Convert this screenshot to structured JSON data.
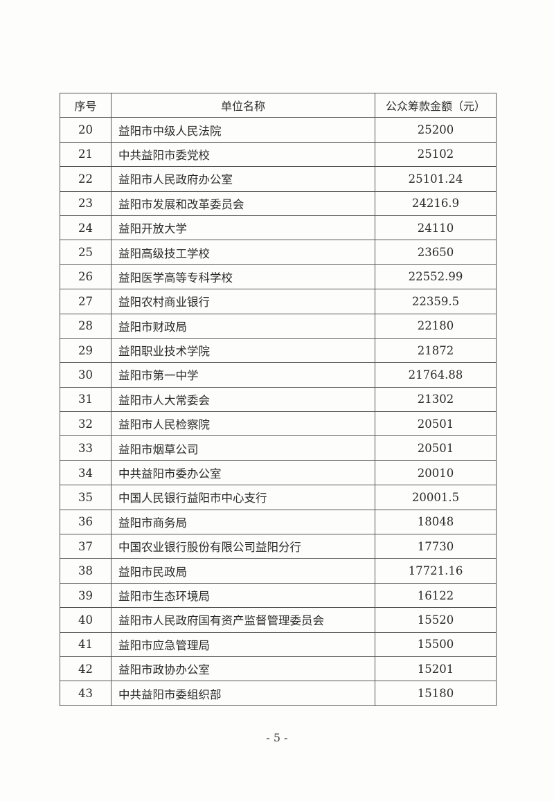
{
  "table": {
    "headers": [
      "序号",
      "单位名称",
      "公众筹款金额（元）"
    ],
    "rows": [
      [
        "20",
        "益阳市中级人民法院",
        "25200"
      ],
      [
        "21",
        "中共益阳市委党校",
        "25102"
      ],
      [
        "22",
        "益阳市人民政府办公室",
        "25101.24"
      ],
      [
        "23",
        "益阳市发展和改革委员会",
        "24216.9"
      ],
      [
        "24",
        "益阳开放大学",
        "24110"
      ],
      [
        "25",
        "益阳高级技工学校",
        "23650"
      ],
      [
        "26",
        "益阳医学高等专科学校",
        "22552.99"
      ],
      [
        "27",
        "益阳农村商业银行",
        "22359.5"
      ],
      [
        "28",
        "益阳市财政局",
        "22180"
      ],
      [
        "29",
        "益阳职业技术学院",
        "21872"
      ],
      [
        "30",
        "益阳市第一中学",
        "21764.88"
      ],
      [
        "31",
        "益阳市人大常委会",
        "21302"
      ],
      [
        "32",
        "益阳市人民检察院",
        "20501"
      ],
      [
        "33",
        "益阳市烟草公司",
        "20501"
      ],
      [
        "34",
        "中共益阳市委办公室",
        "20010"
      ],
      [
        "35",
        "中国人民银行益阳市中心支行",
        "20001.5"
      ],
      [
        "36",
        "益阳市商务局",
        "18048"
      ],
      [
        "37",
        "中国农业银行股份有限公司益阳分行",
        "17730"
      ],
      [
        "38",
        "益阳市民政局",
        "17721.16"
      ],
      [
        "39",
        "益阳市生态环境局",
        "16122"
      ],
      [
        "40",
        "益阳市人民政府国有资产监督管理委员会",
        "15520"
      ],
      [
        "41",
        "益阳市应急管理局",
        "15500"
      ],
      [
        "42",
        "益阳市政协办公室",
        "15201"
      ],
      [
        "43",
        "中共益阳市委组织部",
        "15180"
      ]
    ]
  },
  "page_number": "- 5 -"
}
